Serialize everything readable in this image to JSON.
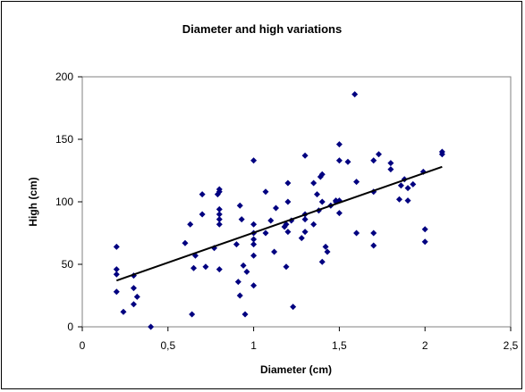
{
  "chart_data": {
    "type": "scatter",
    "title": "Diameter and high variations",
    "xlabel": "Diameter (cm)",
    "ylabel": "High (cm)",
    "xlim": [
      0,
      2.5
    ],
    "ylim": [
      0,
      200
    ],
    "xticks": [
      0,
      0.5,
      1,
      1.5,
      2,
      2.5
    ],
    "xtick_labels": [
      "0",
      "0,5",
      "1",
      "1,5",
      "2",
      "2,5"
    ],
    "yticks": [
      0,
      50,
      100,
      150,
      200
    ],
    "ytick_labels": [
      "0",
      "50",
      "100",
      "150",
      "200"
    ],
    "grid": false,
    "legend": "none",
    "marker_color": "#000080",
    "trendline_color": "#000000",
    "series": [
      {
        "marker": "diamond",
        "points": [
          [
            0.2,
            64
          ],
          [
            0.2,
            46
          ],
          [
            0.2,
            42
          ],
          [
            0.2,
            28
          ],
          [
            0.24,
            12
          ],
          [
            0.3,
            41
          ],
          [
            0.3,
            31
          ],
          [
            0.3,
            18
          ],
          [
            0.32,
            24
          ],
          [
            0.4,
            0
          ],
          [
            0.6,
            67
          ],
          [
            0.63,
            82
          ],
          [
            0.64,
            10
          ],
          [
            0.65,
            47
          ],
          [
            0.66,
            57
          ],
          [
            0.7,
            106
          ],
          [
            0.7,
            90
          ],
          [
            0.72,
            48
          ],
          [
            0.77,
            63
          ],
          [
            0.79,
            106
          ],
          [
            0.8,
            110
          ],
          [
            0.8,
            108
          ],
          [
            0.8,
            94
          ],
          [
            0.8,
            90
          ],
          [
            0.8,
            86
          ],
          [
            0.8,
            82
          ],
          [
            0.8,
            46
          ],
          [
            0.9,
            66
          ],
          [
            0.91,
            36
          ],
          [
            0.92,
            25
          ],
          [
            0.92,
            97
          ],
          [
            0.93,
            86
          ],
          [
            0.94,
            49
          ],
          [
            0.95,
            10
          ],
          [
            0.96,
            44
          ],
          [
            1.0,
            133
          ],
          [
            1.0,
            82
          ],
          [
            1.0,
            75
          ],
          [
            1.0,
            70
          ],
          [
            1.0,
            66
          ],
          [
            1.0,
            57
          ],
          [
            1.0,
            33
          ],
          [
            1.07,
            108
          ],
          [
            1.07,
            75
          ],
          [
            1.1,
            85
          ],
          [
            1.12,
            60
          ],
          [
            1.13,
            95
          ],
          [
            1.18,
            80
          ],
          [
            1.19,
            82
          ],
          [
            1.19,
            48
          ],
          [
            1.2,
            115
          ],
          [
            1.2,
            100
          ],
          [
            1.2,
            76
          ],
          [
            1.22,
            85
          ],
          [
            1.23,
            16
          ],
          [
            1.28,
            71
          ],
          [
            1.3,
            137
          ],
          [
            1.3,
            90
          ],
          [
            1.3,
            86
          ],
          [
            1.3,
            76
          ],
          [
            1.35,
            115
          ],
          [
            1.35,
            82
          ],
          [
            1.37,
            106
          ],
          [
            1.38,
            93
          ],
          [
            1.39,
            120
          ],
          [
            1.4,
            122
          ],
          [
            1.4,
            100
          ],
          [
            1.4,
            52
          ],
          [
            1.42,
            64
          ],
          [
            1.43,
            60
          ],
          [
            1.45,
            97
          ],
          [
            1.48,
            100
          ],
          [
            1.48,
            101
          ],
          [
            1.5,
            146
          ],
          [
            1.5,
            133
          ],
          [
            1.5,
            101
          ],
          [
            1.5,
            91
          ],
          [
            1.55,
            132
          ],
          [
            1.59,
            186
          ],
          [
            1.6,
            116
          ],
          [
            1.6,
            75
          ],
          [
            1.7,
            133
          ],
          [
            1.7,
            108
          ],
          [
            1.7,
            75
          ],
          [
            1.7,
            65
          ],
          [
            1.73,
            138
          ],
          [
            1.8,
            131
          ],
          [
            1.8,
            126
          ],
          [
            1.85,
            102
          ],
          [
            1.86,
            113
          ],
          [
            1.88,
            118
          ],
          [
            1.9,
            101
          ],
          [
            1.9,
            111
          ],
          [
            1.93,
            114
          ],
          [
            1.99,
            124
          ],
          [
            2.0,
            78
          ],
          [
            2.0,
            68
          ],
          [
            2.1,
            140
          ],
          [
            2.1,
            138
          ]
        ]
      }
    ],
    "trendline": {
      "type": "linear",
      "points": [
        [
          0.2,
          37
        ],
        [
          2.1,
          128
        ]
      ]
    }
  }
}
